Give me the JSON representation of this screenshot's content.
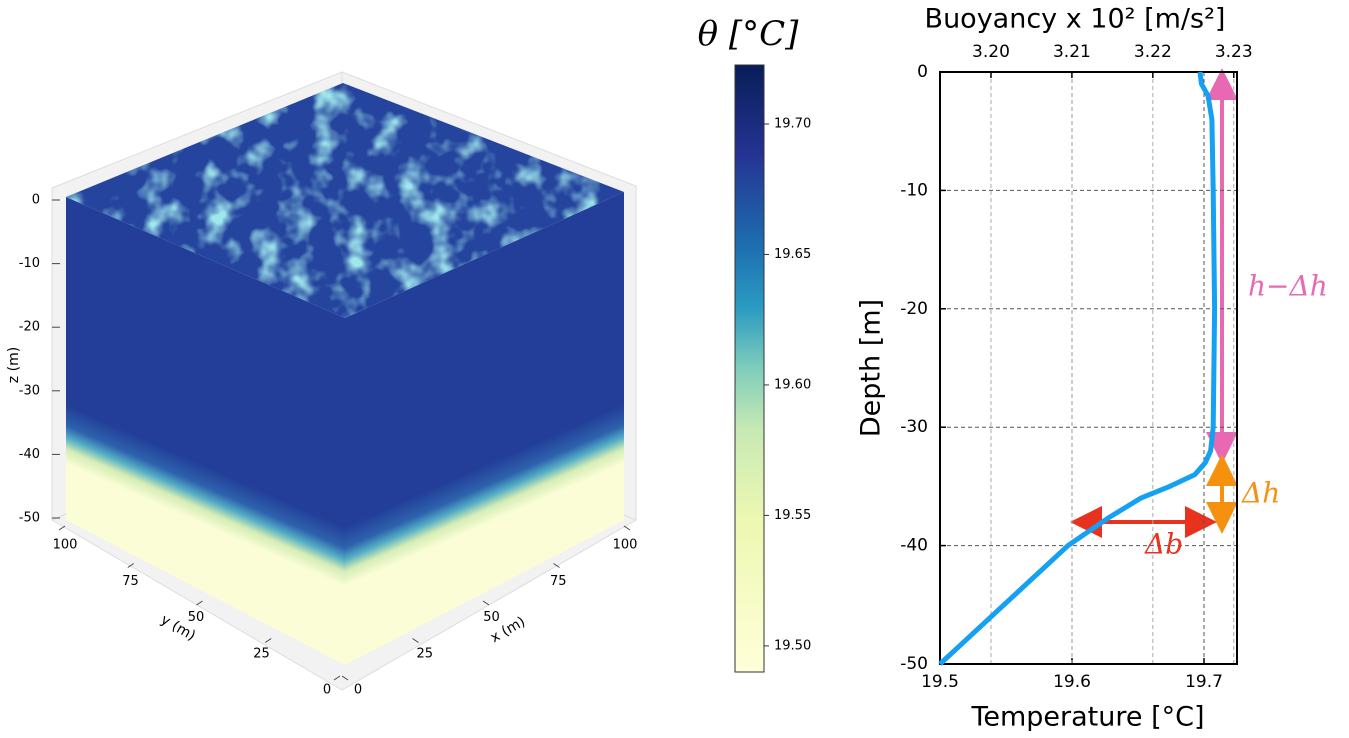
{
  "chart_data": [
    {
      "type": "cube",
      "xlabel": "x (m)",
      "ylabel": "y (m)",
      "zlabel": "z (m)",
      "xlim": [
        0,
        100
      ],
      "ylim": [
        0,
        100
      ],
      "zlim": [
        -50,
        0
      ],
      "xticks": [
        0,
        25,
        50,
        75,
        100
      ],
      "yticks": [
        0,
        25,
        50,
        75,
        100
      ],
      "zticks": [
        0,
        -10,
        -20,
        -30,
        -40,
        -50
      ]
    },
    {
      "type": "colorbar",
      "title": "θ [°C]",
      "clim": [
        19.49,
        19.7226
      ],
      "ticks": [
        {
          "value": 19.5,
          "label": "19.50"
        },
        {
          "value": 19.55,
          "label": "19.55"
        },
        {
          "value": 19.6,
          "label": "19.60"
        },
        {
          "value": 19.65,
          "label": "19.65"
        },
        {
          "value": 19.7,
          "label": "19.70"
        }
      ]
    },
    {
      "type": "line",
      "title": "Buoyancy x 10² [m/s²]",
      "xlabel": "Temperature [°C]",
      "ylabel": "Depth [m]",
      "color": "#16a0f2",
      "grid": true,
      "x": [
        19.5,
        19.597,
        19.627,
        19.652,
        19.674,
        19.693,
        19.701,
        19.705,
        19.707,
        19.708,
        19.707,
        19.706,
        19.703,
        19.698,
        19.697
      ],
      "values": [
        -50,
        -40,
        -37.7,
        -36,
        -35,
        -34,
        -33,
        -32,
        -30,
        -20,
        -10,
        -4,
        -2,
        -1,
        0
      ],
      "xlim": [
        19.5,
        19.725
      ],
      "ylim": [
        -50,
        0
      ],
      "x2lim": [
        3.1937,
        3.2304
      ],
      "xticks": [
        19.5,
        19.6,
        19.7
      ],
      "yticks": [
        0,
        -10,
        -20,
        -30,
        -40,
        -50
      ],
      "x2ticks": [
        {
          "value": 3.2,
          "label": "3.20"
        },
        3.21,
        3.22,
        3.23
      ],
      "annotations": [
        "h−Δh",
        "Δh",
        "Δb"
      ]
    }
  ]
}
